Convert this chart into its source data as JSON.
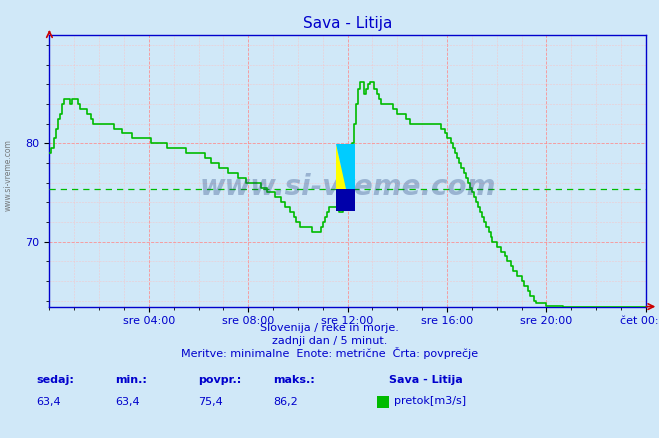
{
  "title": "Sava - Litija",
  "bg_color": "#d0e8f8",
  "plot_bg_color": "#d0e8f8",
  "line_color": "#00bb00",
  "avg_line_color": "#00bb00",
  "avg_value": 75.4,
  "min_value": 63.4,
  "max_value": 86.2,
  "current_value": 63.4,
  "ymin": 63.4,
  "ymax": 91.0,
  "footer_line1": "Slovenija / reke in morje.",
  "footer_line2": "zadnji dan / 5 minut.",
  "footer_line3": "Meritve: minimalne  Enote: metrične  Črta: povprečje",
  "stat_labels": [
    "sedaj:",
    "min.:",
    "povpr.:",
    "maks.:"
  ],
  "stat_values": [
    "63,4",
    "63,4",
    "75,4",
    "86,2"
  ],
  "legend_label": "Sava - Litija",
  "legend_sublabel": "pretok[m3/s]",
  "x_tick_labels": [
    "sre 04:00",
    "sre 08:00",
    "sre 12:00",
    "sre 16:00",
    "sre 20:00",
    "čet 00:00"
  ],
  "x_tick_positions": [
    4,
    8,
    12,
    16,
    20,
    24
  ],
  "yticks": [
    70,
    80
  ],
  "grid_color": "#ff9999",
  "watermark": "www.si-vreme.com",
  "time_data": [
    0.0,
    0.08,
    0.17,
    0.25,
    0.33,
    0.42,
    0.5,
    0.58,
    0.67,
    0.75,
    0.83,
    0.92,
    1.0,
    1.08,
    1.17,
    1.25,
    1.33,
    1.42,
    1.5,
    1.58,
    1.67,
    1.75,
    1.83,
    1.92,
    2.0,
    2.08,
    2.17,
    2.25,
    2.33,
    2.42,
    2.5,
    2.58,
    2.67,
    2.75,
    2.83,
    2.92,
    3.0,
    3.08,
    3.17,
    3.25,
    3.33,
    3.42,
    3.5,
    3.58,
    3.67,
    3.75,
    3.83,
    3.92,
    4.0,
    4.08,
    4.17,
    4.25,
    4.33,
    4.42,
    4.5,
    4.58,
    4.67,
    4.75,
    4.83,
    4.92,
    5.0,
    5.08,
    5.17,
    5.25,
    5.33,
    5.42,
    5.5,
    5.58,
    5.67,
    5.75,
    5.83,
    5.92,
    6.0,
    6.08,
    6.17,
    6.25,
    6.33,
    6.42,
    6.5,
    6.58,
    6.67,
    6.75,
    6.83,
    6.92,
    7.0,
    7.08,
    7.17,
    7.25,
    7.33,
    7.42,
    7.5,
    7.58,
    7.67,
    7.75,
    7.83,
    7.92,
    8.0,
    8.08,
    8.17,
    8.25,
    8.33,
    8.42,
    8.5,
    8.58,
    8.67,
    8.75,
    8.83,
    8.92,
    9.0,
    9.08,
    9.17,
    9.25,
    9.33,
    9.42,
    9.5,
    9.58,
    9.67,
    9.75,
    9.83,
    9.92,
    10.0,
    10.08,
    10.17,
    10.25,
    10.33,
    10.42,
    10.5,
    10.58,
    10.67,
    10.75,
    10.83,
    10.92,
    11.0,
    11.08,
    11.17,
    11.25,
    11.33,
    11.42,
    11.5,
    11.58,
    11.67,
    11.75,
    11.83,
    11.92,
    12.0,
    12.08,
    12.17,
    12.25,
    12.33,
    12.42,
    12.5,
    12.58,
    12.67,
    12.75,
    12.83,
    12.92,
    13.0,
    13.08,
    13.17,
    13.25,
    13.33,
    13.42,
    13.5,
    13.58,
    13.67,
    13.75,
    13.83,
    13.92,
    14.0,
    14.08,
    14.17,
    14.25,
    14.33,
    14.42,
    14.5,
    14.58,
    14.67,
    14.75,
    14.83,
    14.92,
    15.0,
    15.08,
    15.17,
    15.25,
    15.33,
    15.42,
    15.5,
    15.58,
    15.67,
    15.75,
    15.83,
    15.92,
    16.0,
    16.08,
    16.17,
    16.25,
    16.33,
    16.42,
    16.5,
    16.58,
    16.67,
    16.75,
    16.83,
    16.92,
    17.0,
    17.08,
    17.17,
    17.25,
    17.33,
    17.42,
    17.5,
    17.58,
    17.67,
    17.75,
    17.83,
    17.92,
    18.0,
    18.08,
    18.17,
    18.25,
    18.33,
    18.42,
    18.5,
    18.58,
    18.67,
    18.75,
    18.83,
    18.92,
    19.0,
    19.08,
    19.17,
    19.25,
    19.33,
    19.42,
    19.5,
    19.58,
    19.67,
    19.75,
    19.83,
    19.92,
    20.0,
    20.08,
    20.17,
    20.25,
    20.33,
    20.42,
    20.5,
    20.58,
    20.67,
    20.75,
    20.83,
    20.92,
    21.0,
    21.08,
    21.17,
    21.25,
    21.33,
    21.42,
    21.5,
    21.58,
    21.67,
    21.75,
    21.83,
    21.92,
    22.0,
    22.08,
    22.17,
    22.25,
    22.33,
    22.42,
    22.5,
    22.58,
    22.67,
    22.75,
    22.83,
    22.92,
    23.0,
    23.08,
    23.17,
    23.25,
    23.33,
    23.42,
    23.5,
    23.58,
    23.67,
    23.75,
    23.83,
    23.92,
    24.0
  ],
  "flow_data": [
    79.0,
    79.5,
    80.5,
    81.5,
    82.5,
    83.0,
    84.0,
    84.5,
    84.5,
    84.5,
    84.0,
    84.5,
    84.5,
    84.5,
    84.0,
    83.5,
    83.5,
    83.5,
    83.0,
    83.0,
    82.5,
    82.0,
    82.0,
    82.0,
    82.0,
    82.0,
    82.0,
    82.0,
    82.0,
    82.0,
    82.0,
    81.5,
    81.5,
    81.5,
    81.5,
    81.0,
    81.0,
    81.0,
    81.0,
    81.0,
    80.5,
    80.5,
    80.5,
    80.5,
    80.5,
    80.5,
    80.5,
    80.5,
    80.5,
    80.0,
    80.0,
    80.0,
    80.0,
    80.0,
    80.0,
    80.0,
    80.0,
    79.5,
    79.5,
    79.5,
    79.5,
    79.5,
    79.5,
    79.5,
    79.5,
    79.5,
    79.0,
    79.0,
    79.0,
    79.0,
    79.0,
    79.0,
    79.0,
    79.0,
    79.0,
    78.5,
    78.5,
    78.5,
    78.0,
    78.0,
    78.0,
    78.0,
    77.5,
    77.5,
    77.5,
    77.5,
    77.0,
    77.0,
    77.0,
    77.0,
    77.0,
    76.5,
    76.5,
    76.5,
    76.5,
    76.0,
    76.0,
    76.0,
    76.0,
    76.0,
    76.0,
    76.0,
    75.5,
    75.5,
    75.5,
    75.0,
    75.0,
    75.0,
    75.0,
    74.5,
    74.5,
    74.5,
    74.0,
    74.0,
    73.5,
    73.5,
    73.0,
    73.0,
    72.5,
    72.0,
    72.0,
    71.5,
    71.5,
    71.5,
    71.5,
    71.5,
    71.5,
    71.0,
    71.0,
    71.0,
    71.0,
    71.5,
    72.0,
    72.5,
    73.0,
    73.5,
    73.5,
    73.5,
    73.5,
    73.5,
    73.0,
    73.0,
    73.5,
    74.5,
    76.0,
    78.0,
    80.0,
    82.0,
    84.0,
    85.5,
    86.2,
    86.2,
    85.0,
    85.5,
    86.0,
    86.2,
    86.2,
    85.5,
    85.0,
    84.5,
    84.0,
    84.0,
    84.0,
    84.0,
    84.0,
    84.0,
    83.5,
    83.5,
    83.0,
    83.0,
    83.0,
    83.0,
    82.5,
    82.5,
    82.0,
    82.0,
    82.0,
    82.0,
    82.0,
    82.0,
    82.0,
    82.0,
    82.0,
    82.0,
    82.0,
    82.0,
    82.0,
    82.0,
    82.0,
    81.5,
    81.5,
    81.0,
    80.5,
    80.5,
    80.0,
    79.5,
    79.0,
    78.5,
    78.0,
    77.5,
    77.0,
    76.5,
    76.0,
    75.5,
    75.0,
    74.5,
    74.0,
    73.5,
    73.0,
    72.5,
    72.0,
    71.5,
    71.0,
    70.5,
    70.0,
    70.0,
    69.5,
    69.5,
    69.0,
    69.0,
    68.5,
    68.0,
    68.0,
    67.5,
    67.0,
    67.0,
    66.5,
    66.5,
    66.0,
    65.5,
    65.5,
    65.0,
    64.5,
    64.5,
    64.0,
    63.8,
    63.8,
    63.8,
    63.8,
    63.8,
    63.5,
    63.5,
    63.5,
    63.5,
    63.5,
    63.5,
    63.5,
    63.5,
    63.4,
    63.4,
    63.4,
    63.4,
    63.4,
    63.4,
    63.4,
    63.4,
    63.4,
    63.4,
    63.4,
    63.4,
    63.4,
    63.4,
    63.4,
    63.4,
    63.4,
    63.4,
    63.4,
    63.4,
    63.4,
    63.4,
    63.4,
    63.4,
    63.4,
    63.4,
    63.4,
    63.4,
    63.4,
    63.4,
    63.4,
    63.4,
    63.4,
    63.4,
    63.4,
    63.4,
    63.4,
    63.4,
    63.4,
    63.4,
    63.4
  ]
}
